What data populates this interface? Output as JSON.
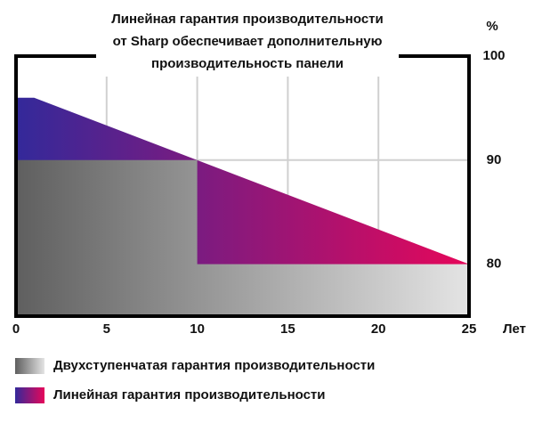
{
  "chart_data": {
    "type": "area",
    "title": [
      "Линейная гарантия производительности",
      "от Sharp обеспечивает дополнительную",
      "производительность панели"
    ],
    "x_label": "Лет",
    "y_label": "%",
    "xlim": [
      0,
      25
    ],
    "xticks": [
      0,
      5,
      10,
      15,
      20,
      25
    ],
    "ylim": [
      75,
      100
    ],
    "yticks": [
      80,
      90,
      100
    ],
    "grid": true,
    "series": [
      {
        "name": "Линейная гарантия производительности",
        "colors": [
          "#33299a",
          "#e6075a"
        ],
        "x": [
          0,
          1,
          25
        ],
        "values": [
          96,
          96,
          80
        ]
      },
      {
        "name": "Двухступенчатая гарантия производительности",
        "colors": [
          "#5f5f5f",
          "#e4e4e4"
        ],
        "x": [
          0,
          10,
          10,
          25
        ],
        "values": [
          90,
          90,
          80,
          80
        ]
      }
    ]
  }
}
